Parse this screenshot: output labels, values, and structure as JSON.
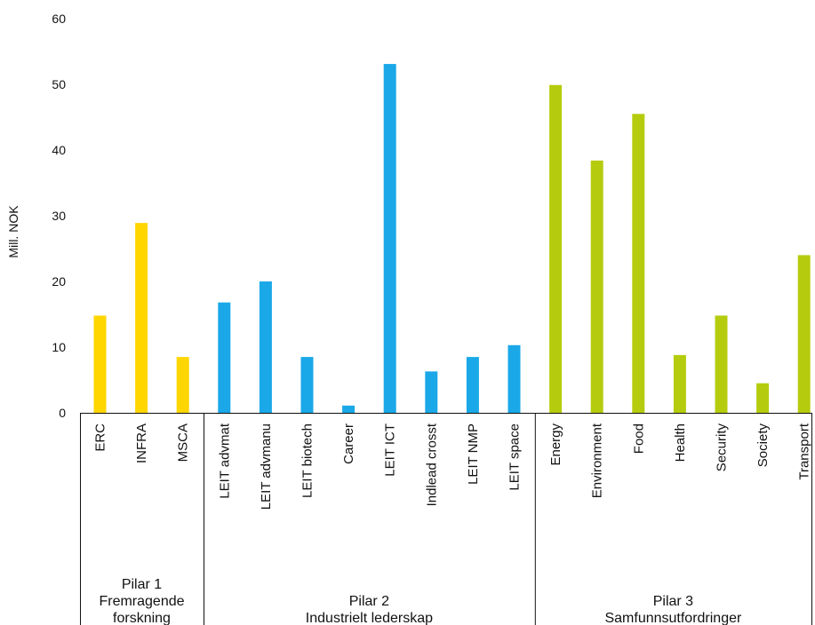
{
  "chart_data": {
    "type": "bar",
    "ylabel": "Mill. NOK",
    "ylim": [
      0,
      60
    ],
    "yticks": [
      0,
      10,
      20,
      30,
      40,
      50,
      60
    ],
    "categories": [
      "ERC",
      "INFRA",
      "MSCA",
      "LEIT advmat",
      "LEIT advmanu",
      "LEIT biotech",
      "Career",
      "LEIT ICT",
      "Indlead crosst",
      "LEIT NMP",
      "LEIT space",
      "Energy",
      "Environment",
      "Food",
      "Health",
      "Security",
      "Society",
      "Transport"
    ],
    "values": [
      14.8,
      28.9,
      8.5,
      16.8,
      20.0,
      8.5,
      1.1,
      53.1,
      6.3,
      8.5,
      10.3,
      49.9,
      38.4,
      45.5,
      8.8,
      14.8,
      4.5,
      24.0
    ],
    "groups": [
      {
        "lines": [
          "Pilar 1",
          "Fremragende",
          "forskning"
        ],
        "start": 0,
        "end": 2,
        "color": "#FFD600"
      },
      {
        "lines": [
          "Pilar 2",
          "Industrielt lederskap"
        ],
        "start": 3,
        "end": 10,
        "color": "#1AA8E8"
      },
      {
        "lines": [
          "Pilar 3",
          "Samfunnsutfordringer"
        ],
        "start": 11,
        "end": 17,
        "color": "#B5CC0E"
      }
    ]
  }
}
